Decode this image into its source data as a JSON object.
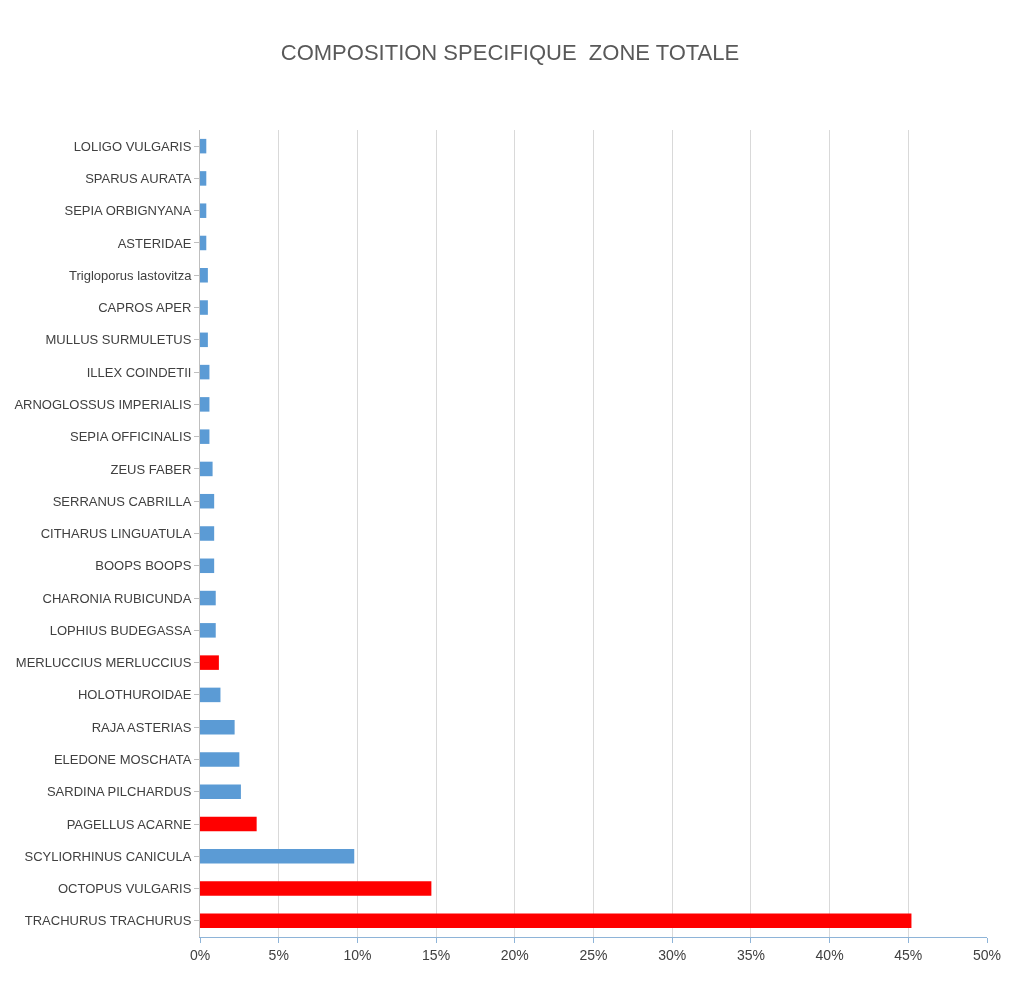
{
  "chart_data": {
    "type": "bar",
    "orientation": "horizontal",
    "title": "COMPOSITION SPECIFIQUE  ZONE TOTALE",
    "categories": [
      "LOLIGO VULGARIS",
      "SPARUS AURATA",
      "SEPIA ORBIGNYANA",
      "ASTERIDAE",
      "Trigloporus lastovitza",
      "CAPROS APER",
      "MULLUS SURMULETUS",
      "ILLEX COINDETII",
      "ARNOGLOSSUS IMPERIALIS",
      "SEPIA OFFICINALIS",
      "ZEUS FABER",
      "SERRANUS CABRILLA",
      "CITHARUS LINGUATULA",
      "BOOPS BOOPS",
      "CHARONIA RUBICUNDA",
      "LOPHIUS BUDEGASSA",
      "MERLUCCIUS MERLUCCIUS",
      "HOLOTHUROIDAE",
      "RAJA ASTERIAS",
      "ELEDONE MOSCHATA",
      "SARDINA PILCHARDUS",
      "PAGELLUS ACARNE",
      "SCYLIORHINUS CANICULA",
      "OCTOPUS VULGARIS",
      "TRACHURUS TRACHURUS"
    ],
    "values": [
      0.4,
      0.4,
      0.4,
      0.4,
      0.5,
      0.5,
      0.5,
      0.6,
      0.6,
      0.6,
      0.8,
      0.9,
      0.9,
      0.9,
      1.0,
      1.0,
      1.2,
      1.3,
      2.2,
      2.5,
      2.6,
      3.6,
      9.8,
      14.7,
      45.2
    ],
    "colors": [
      "#5b9bd5",
      "#5b9bd5",
      "#5b9bd5",
      "#5b9bd5",
      "#5b9bd5",
      "#5b9bd5",
      "#5b9bd5",
      "#5b9bd5",
      "#5b9bd5",
      "#5b9bd5",
      "#5b9bd5",
      "#5b9bd5",
      "#5b9bd5",
      "#5b9bd5",
      "#5b9bd5",
      "#5b9bd5",
      "#ff0000",
      "#5b9bd5",
      "#5b9bd5",
      "#5b9bd5",
      "#5b9bd5",
      "#ff0000",
      "#5b9bd5",
      "#ff0000",
      "#ff0000"
    ],
    "xlim": [
      0,
      50
    ],
    "xticks": [
      {
        "value": 0,
        "label": "0%"
      },
      {
        "value": 5,
        "label": "5%"
      },
      {
        "value": 10,
        "label": "10%"
      },
      {
        "value": 15,
        "label": "15%"
      },
      {
        "value": 20,
        "label": "20%"
      },
      {
        "value": 25,
        "label": "25%"
      },
      {
        "value": 30,
        "label": "30%"
      },
      {
        "value": 35,
        "label": "35%"
      },
      {
        "value": 40,
        "label": "40%"
      },
      {
        "value": 45,
        "label": "45%"
      },
      {
        "value": 50,
        "label": "50%"
      }
    ],
    "grid": "x"
  }
}
